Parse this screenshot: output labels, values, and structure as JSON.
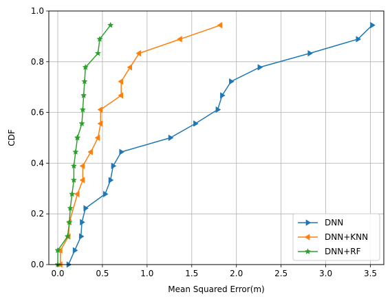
{
  "chart_data": {
    "type": "line",
    "title": "",
    "xlabel": "Mean Squared Error(m)",
    "ylabel": "CDF",
    "xlim": [
      -0.1,
      3.65
    ],
    "ylim": [
      0.0,
      1.0
    ],
    "xticks": [
      "0.0",
      "0.5",
      "1.0",
      "1.5",
      "2.0",
      "2.5",
      "3.0",
      "3.5"
    ],
    "xtick_values": [
      0.0,
      0.5,
      1.0,
      1.5,
      2.0,
      2.5,
      3.0,
      3.5
    ],
    "yticks": [
      "0.0",
      "0.2",
      "0.4",
      "0.6",
      "0.8",
      "1.0"
    ],
    "ytick_values": [
      0.0,
      0.2,
      0.4,
      0.6,
      0.8,
      1.0
    ],
    "grid": true,
    "legend_position": "lower-right",
    "series": [
      {
        "name": "DNN",
        "color": "#1f77b4",
        "marker": "triangle-right",
        "x": [
          0.12,
          0.19,
          0.26,
          0.27,
          0.31,
          0.53,
          0.59,
          0.62,
          0.71,
          1.26,
          1.54,
          1.79,
          1.84,
          1.94,
          2.26,
          2.82,
          3.36,
          3.52
        ],
        "y": [
          0.0,
          0.056,
          0.111,
          0.167,
          0.222,
          0.278,
          0.333,
          0.389,
          0.444,
          0.5,
          0.556,
          0.611,
          0.667,
          0.722,
          0.778,
          0.833,
          0.889,
          0.944
        ]
      },
      {
        "name": "DNN+KNN",
        "color": "#ff7f0e",
        "marker": "triangle-left",
        "x": [
          0.03,
          0.03,
          0.12,
          0.13,
          0.22,
          0.28,
          0.28,
          0.37,
          0.45,
          0.48,
          0.48,
          0.71,
          0.71,
          0.81,
          0.91,
          1.37,
          1.82
        ],
        "y": [
          0.0,
          0.056,
          0.111,
          0.167,
          0.278,
          0.333,
          0.389,
          0.444,
          0.5,
          0.556,
          0.611,
          0.667,
          0.722,
          0.778,
          0.833,
          0.889,
          0.944
        ]
      },
      {
        "name": "DNN+RF",
        "color": "#2ca02c",
        "marker": "star",
        "x": [
          0.0,
          0.0,
          0.11,
          0.13,
          0.14,
          0.16,
          0.18,
          0.18,
          0.2,
          0.22,
          0.22,
          0.27,
          0.28,
          0.29,
          0.3,
          0.31,
          0.45,
          0.47,
          0.59
        ],
        "y": [
          0.0,
          0.056,
          0.111,
          0.167,
          0.222,
          0.278,
          0.333,
          0.389,
          0.444,
          0.5,
          0.5,
          0.556,
          0.611,
          0.667,
          0.722,
          0.778,
          0.833,
          0.889,
          0.944
        ]
      }
    ]
  }
}
